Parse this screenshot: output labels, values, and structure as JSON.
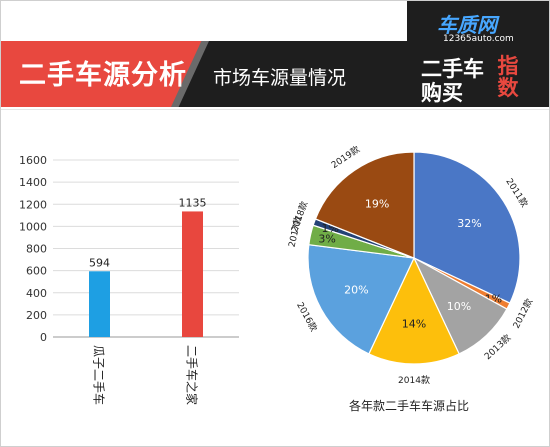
{
  "header": {
    "title": "二手车源分析",
    "subtitle": "市场车源量情况",
    "logo_top": "车质网",
    "logo_url": "12365auto.com",
    "logo_line1": "二手车",
    "logo_line2": "购买",
    "logo_red": "指数"
  },
  "caption": "各年款二手车车源占比",
  "chart_data": [
    {
      "type": "bar",
      "categories": [
        "瓜子二手车",
        "二手车之家"
      ],
      "values": [
        594,
        1135
      ],
      "data_labels": [
        "594",
        "1135"
      ],
      "colors": [
        "#1e9fe3",
        "#e8473e"
      ],
      "ylim": [
        0,
        1600
      ],
      "yticks": [
        "0",
        "200",
        "400",
        "600",
        "800",
        "1000",
        "1200",
        "1400",
        "1600"
      ],
      "grid": true
    },
    {
      "type": "pie",
      "labels": [
        "2011款",
        "2012款",
        "2013款",
        "2014款",
        "2016款",
        "2017款",
        "2018款",
        "2019款"
      ],
      "values": [
        32,
        1,
        10,
        14,
        20,
        3,
        1,
        19
      ],
      "value_labels": [
        "32%",
        "1%",
        "10%",
        "14%",
        "20%",
        "3%",
        "1%",
        "19%"
      ],
      "colors": [
        "#4a77c6",
        "#ee7d31",
        "#a3a3a3",
        "#fdbf0c",
        "#5ba1de",
        "#70ad47",
        "#244276",
        "#9a4a12"
      ],
      "title": "各年款二手车车源占比"
    }
  ]
}
